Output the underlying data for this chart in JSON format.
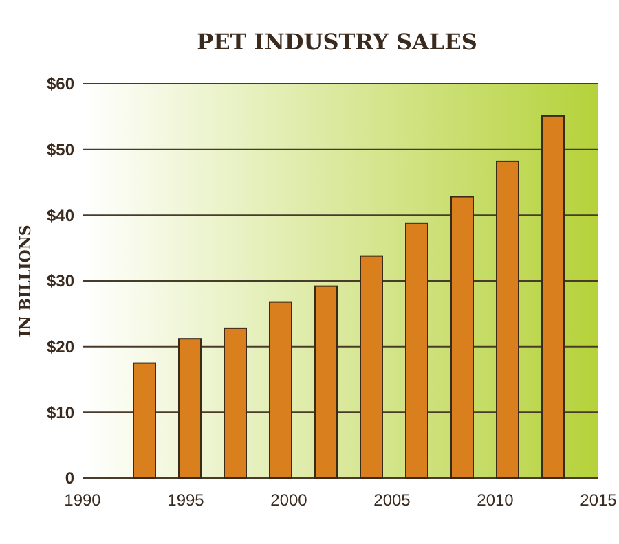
{
  "chart_data": {
    "type": "bar",
    "title": "PET INDUSTRY SALES",
    "ylabel": "IN BILLIONS",
    "x": [
      1993,
      1995.2,
      1997.4,
      1999.6,
      2001.8,
      2004,
      2006.2,
      2008.4,
      2010.6,
      2012.8
    ],
    "values": [
      17.5,
      21.2,
      22.8,
      26.8,
      29.2,
      33.8,
      38.8,
      42.8,
      48.2,
      55.1
    ],
    "color": "#d97f1e",
    "xlim": [
      1990,
      2015
    ],
    "xticks": [
      1990,
      1995,
      2000,
      2005,
      2010,
      2015
    ],
    "ylim": [
      0,
      60
    ],
    "yticks": [
      {
        "value": 0,
        "label": "0"
      },
      {
        "value": 10,
        "label": "$10"
      },
      {
        "value": 20,
        "label": "$20"
      },
      {
        "value": 30,
        "label": "$30"
      },
      {
        "value": 40,
        "label": "$40"
      },
      {
        "value": 50,
        "label": "$50"
      },
      {
        "value": 60,
        "label": "$60"
      }
    ],
    "grid": "y"
  }
}
